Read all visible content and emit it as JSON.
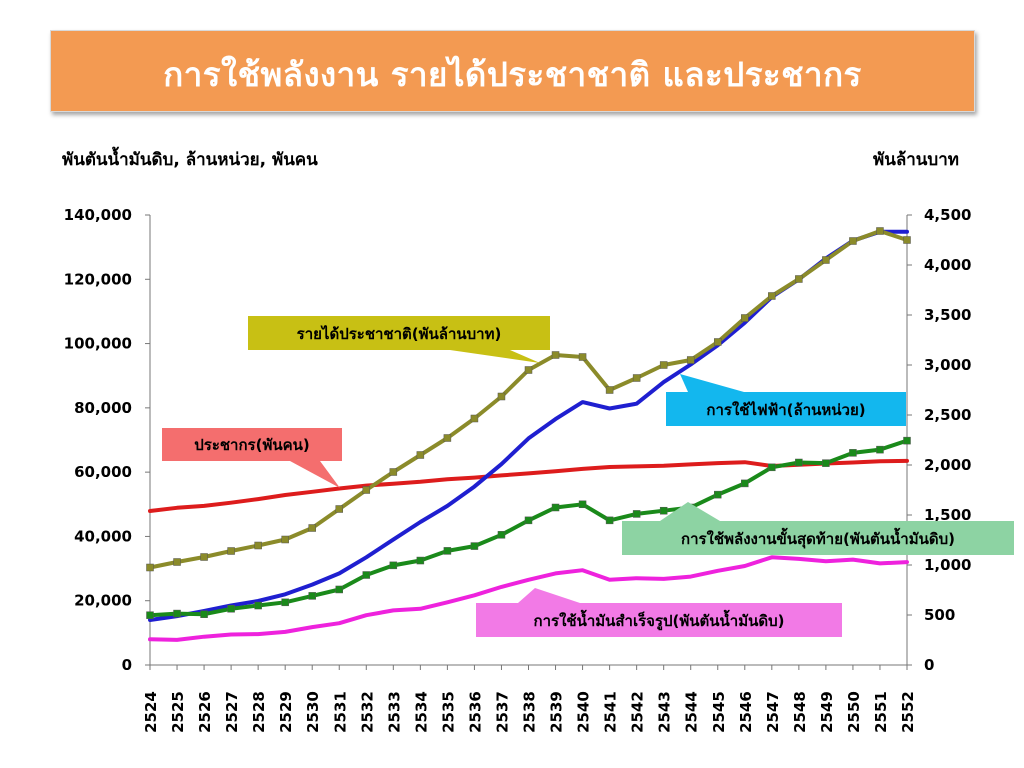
{
  "title": "การใช้พลังงาน รายได้ประชาชาติ และประชากร",
  "colors": {
    "title_bg": "#f39a52",
    "income": "#8b8b2a",
    "electricity": "#1f1fd0",
    "population": "#dd1c1c",
    "final_energy": "#1a8a1a",
    "oil": "#ee22dd"
  },
  "chart_data": {
    "type": "line",
    "left_axis_label": "พันตันน้ำมันดิบ, ล้านหน่วย, พันคน",
    "right_axis_label": "พันล้านบาท",
    "left_ylim": [
      0,
      140000
    ],
    "right_ylim": [
      0,
      4500
    ],
    "left_ticks": [
      "140,000",
      "120,000",
      "100,000",
      "80,000",
      "60,000",
      "40,000",
      "20,000",
      "0"
    ],
    "right_ticks": [
      "4,500",
      "4,000",
      "3,500",
      "3,000",
      "2,500",
      "2,000",
      "1,500",
      "1,000",
      "500",
      "0"
    ],
    "categories": [
      "2524",
      "2525",
      "2526",
      "2527",
      "2528",
      "2529",
      "2530",
      "2531",
      "2532",
      "2533",
      "2534",
      "2535",
      "2536",
      "2537",
      "2538",
      "2539",
      "2540",
      "2541",
      "2542",
      "2543",
      "2544",
      "2545",
      "2546",
      "2547",
      "2548",
      "2549",
      "2550",
      "2551",
      "2552"
    ],
    "grid": false,
    "series": [
      {
        "key": "income",
        "name": "รายได้ประชาชาติ(พันล้านบาท)",
        "axis": "right",
        "markers": true,
        "values": [
          975,
          1030,
          1080,
          1140,
          1195,
          1255,
          1370,
          1560,
          1750,
          1930,
          2100,
          2270,
          2465,
          2685,
          2950,
          3100,
          3080,
          2750,
          2870,
          3000,
          3050,
          3230,
          3470,
          3690,
          3860,
          4050,
          4240,
          4340,
          4250
        ]
      },
      {
        "key": "electricity",
        "name": "การใช้ไฟฟ้า(ล้านหน่วย)",
        "axis": "left",
        "markers": false,
        "values": [
          14000,
          15200,
          16800,
          18500,
          19900,
          22000,
          25000,
          28500,
          33500,
          39000,
          44500,
          49500,
          55500,
          62500,
          70500,
          76500,
          81800,
          79800,
          81300,
          88000,
          93500,
          99500,
          106500,
          114500,
          120000,
          126500,
          132000,
          134800,
          134800
        ]
      },
      {
        "key": "population",
        "name": "ประชากร(พันคน)",
        "axis": "left",
        "markers": false,
        "values": [
          47900,
          48900,
          49500,
          50500,
          51600,
          52900,
          53900,
          54900,
          55800,
          56400,
          57000,
          57800,
          58300,
          59000,
          59600,
          60300,
          61000,
          61600,
          61800,
          62000,
          62400,
          62800,
          63100,
          61900,
          62300,
          62700,
          63000,
          63400,
          63500
        ]
      },
      {
        "key": "final_energy",
        "name": "การใช้พลังงานขั้นสุดท้าย(พันตันน้ำมันดิบ)",
        "axis": "left",
        "markers": true,
        "values": [
          15500,
          16000,
          15800,
          17500,
          18500,
          19500,
          21500,
          23500,
          28000,
          31000,
          32500,
          35500,
          37000,
          40500,
          45000,
          49000,
          50000,
          45000,
          47000,
          48000,
          49000,
          53000,
          56500,
          61500,
          63000,
          62800,
          66000,
          67000,
          69800
        ]
      },
      {
        "key": "oil",
        "name": "การใช้น้ำมันสำเร็จรูป(พันตันน้ำมันดิบ)",
        "axis": "left",
        "markers": false,
        "values": [
          8000,
          7800,
          8800,
          9500,
          9600,
          10300,
          11800,
          13000,
          15500,
          17000,
          17500,
          19500,
          21700,
          24300,
          26500,
          28500,
          29500,
          26500,
          27000,
          26800,
          27500,
          29300,
          30800,
          33500,
          33000,
          32300,
          32800,
          31600,
          32000
        ]
      }
    ],
    "callouts": [
      {
        "key": "income",
        "text": "รายได้ประชาชาติ(พันล้านบาท)",
        "bg": "#c8c014"
      },
      {
        "key": "electricity",
        "text": "การใช้ไฟฟ้า(ล้านหน่วย)",
        "bg": "#13b7ee"
      },
      {
        "key": "population",
        "text": "ประชากร(พันคน)",
        "bg": "#f46e6e"
      },
      {
        "key": "final_energy",
        "text": "การใช้พลังงานขั้นสุดท้าย(พันตันน้ำมันดิบ)",
        "bg": "#8dd3a3"
      },
      {
        "key": "oil",
        "text": "การใช้น้ำมันสำเร็จรูป(พันตันน้ำมันดิบ)",
        "bg": "#f27ae6"
      }
    ]
  }
}
